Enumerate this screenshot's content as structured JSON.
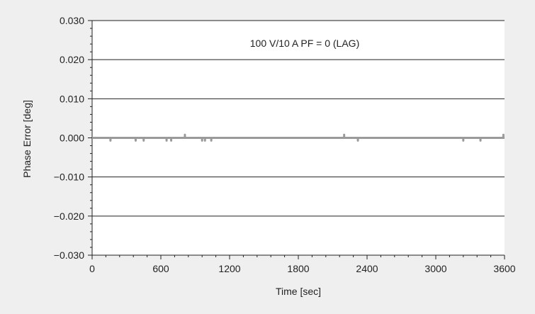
{
  "chart_data": {
    "type": "line",
    "title": "",
    "annotation": "100 V/10 A PF = 0 (LAG)",
    "xlabel": "Time [sec]",
    "ylabel": "Phase Error [deg]",
    "xlim": [
      0,
      3600
    ],
    "ylim": [
      -0.03,
      0.03
    ],
    "x_ticks": [
      0,
      600,
      1200,
      1800,
      2400,
      3000,
      3600
    ],
    "x_tick_labels": [
      "0",
      "600",
      "1200",
      "1800",
      "2400",
      "3000",
      "3600"
    ],
    "y_ticks": [
      0.03,
      0.02,
      0.01,
      0.0,
      -0.01,
      -0.02,
      -0.03
    ],
    "y_tick_labels": [
      "0.030",
      "0.020",
      "0.010",
      "0.000",
      "−0.010",
      "−0.020",
      "−0.030"
    ],
    "grid": "horizontal",
    "series": [
      {
        "name": "",
        "color": "#9a9a9a",
        "baseline": 0.0,
        "spikes": [
          {
            "x": 160,
            "y": -0.0007
          },
          {
            "x": 380,
            "y": -0.0007
          },
          {
            "x": 450,
            "y": -0.0007
          },
          {
            "x": 650,
            "y": -0.0007
          },
          {
            "x": 690,
            "y": -0.0007
          },
          {
            "x": 810,
            "y": 0.0008
          },
          {
            "x": 960,
            "y": -0.0007
          },
          {
            "x": 985,
            "y": -0.0007
          },
          {
            "x": 1040,
            "y": -0.0007
          },
          {
            "x": 2200,
            "y": 0.0008
          },
          {
            "x": 2320,
            "y": -0.0007
          },
          {
            "x": 3240,
            "y": -0.0007
          },
          {
            "x": 3390,
            "y": -0.0007
          },
          {
            "x": 3590,
            "y": 0.0008
          }
        ]
      }
    ]
  }
}
